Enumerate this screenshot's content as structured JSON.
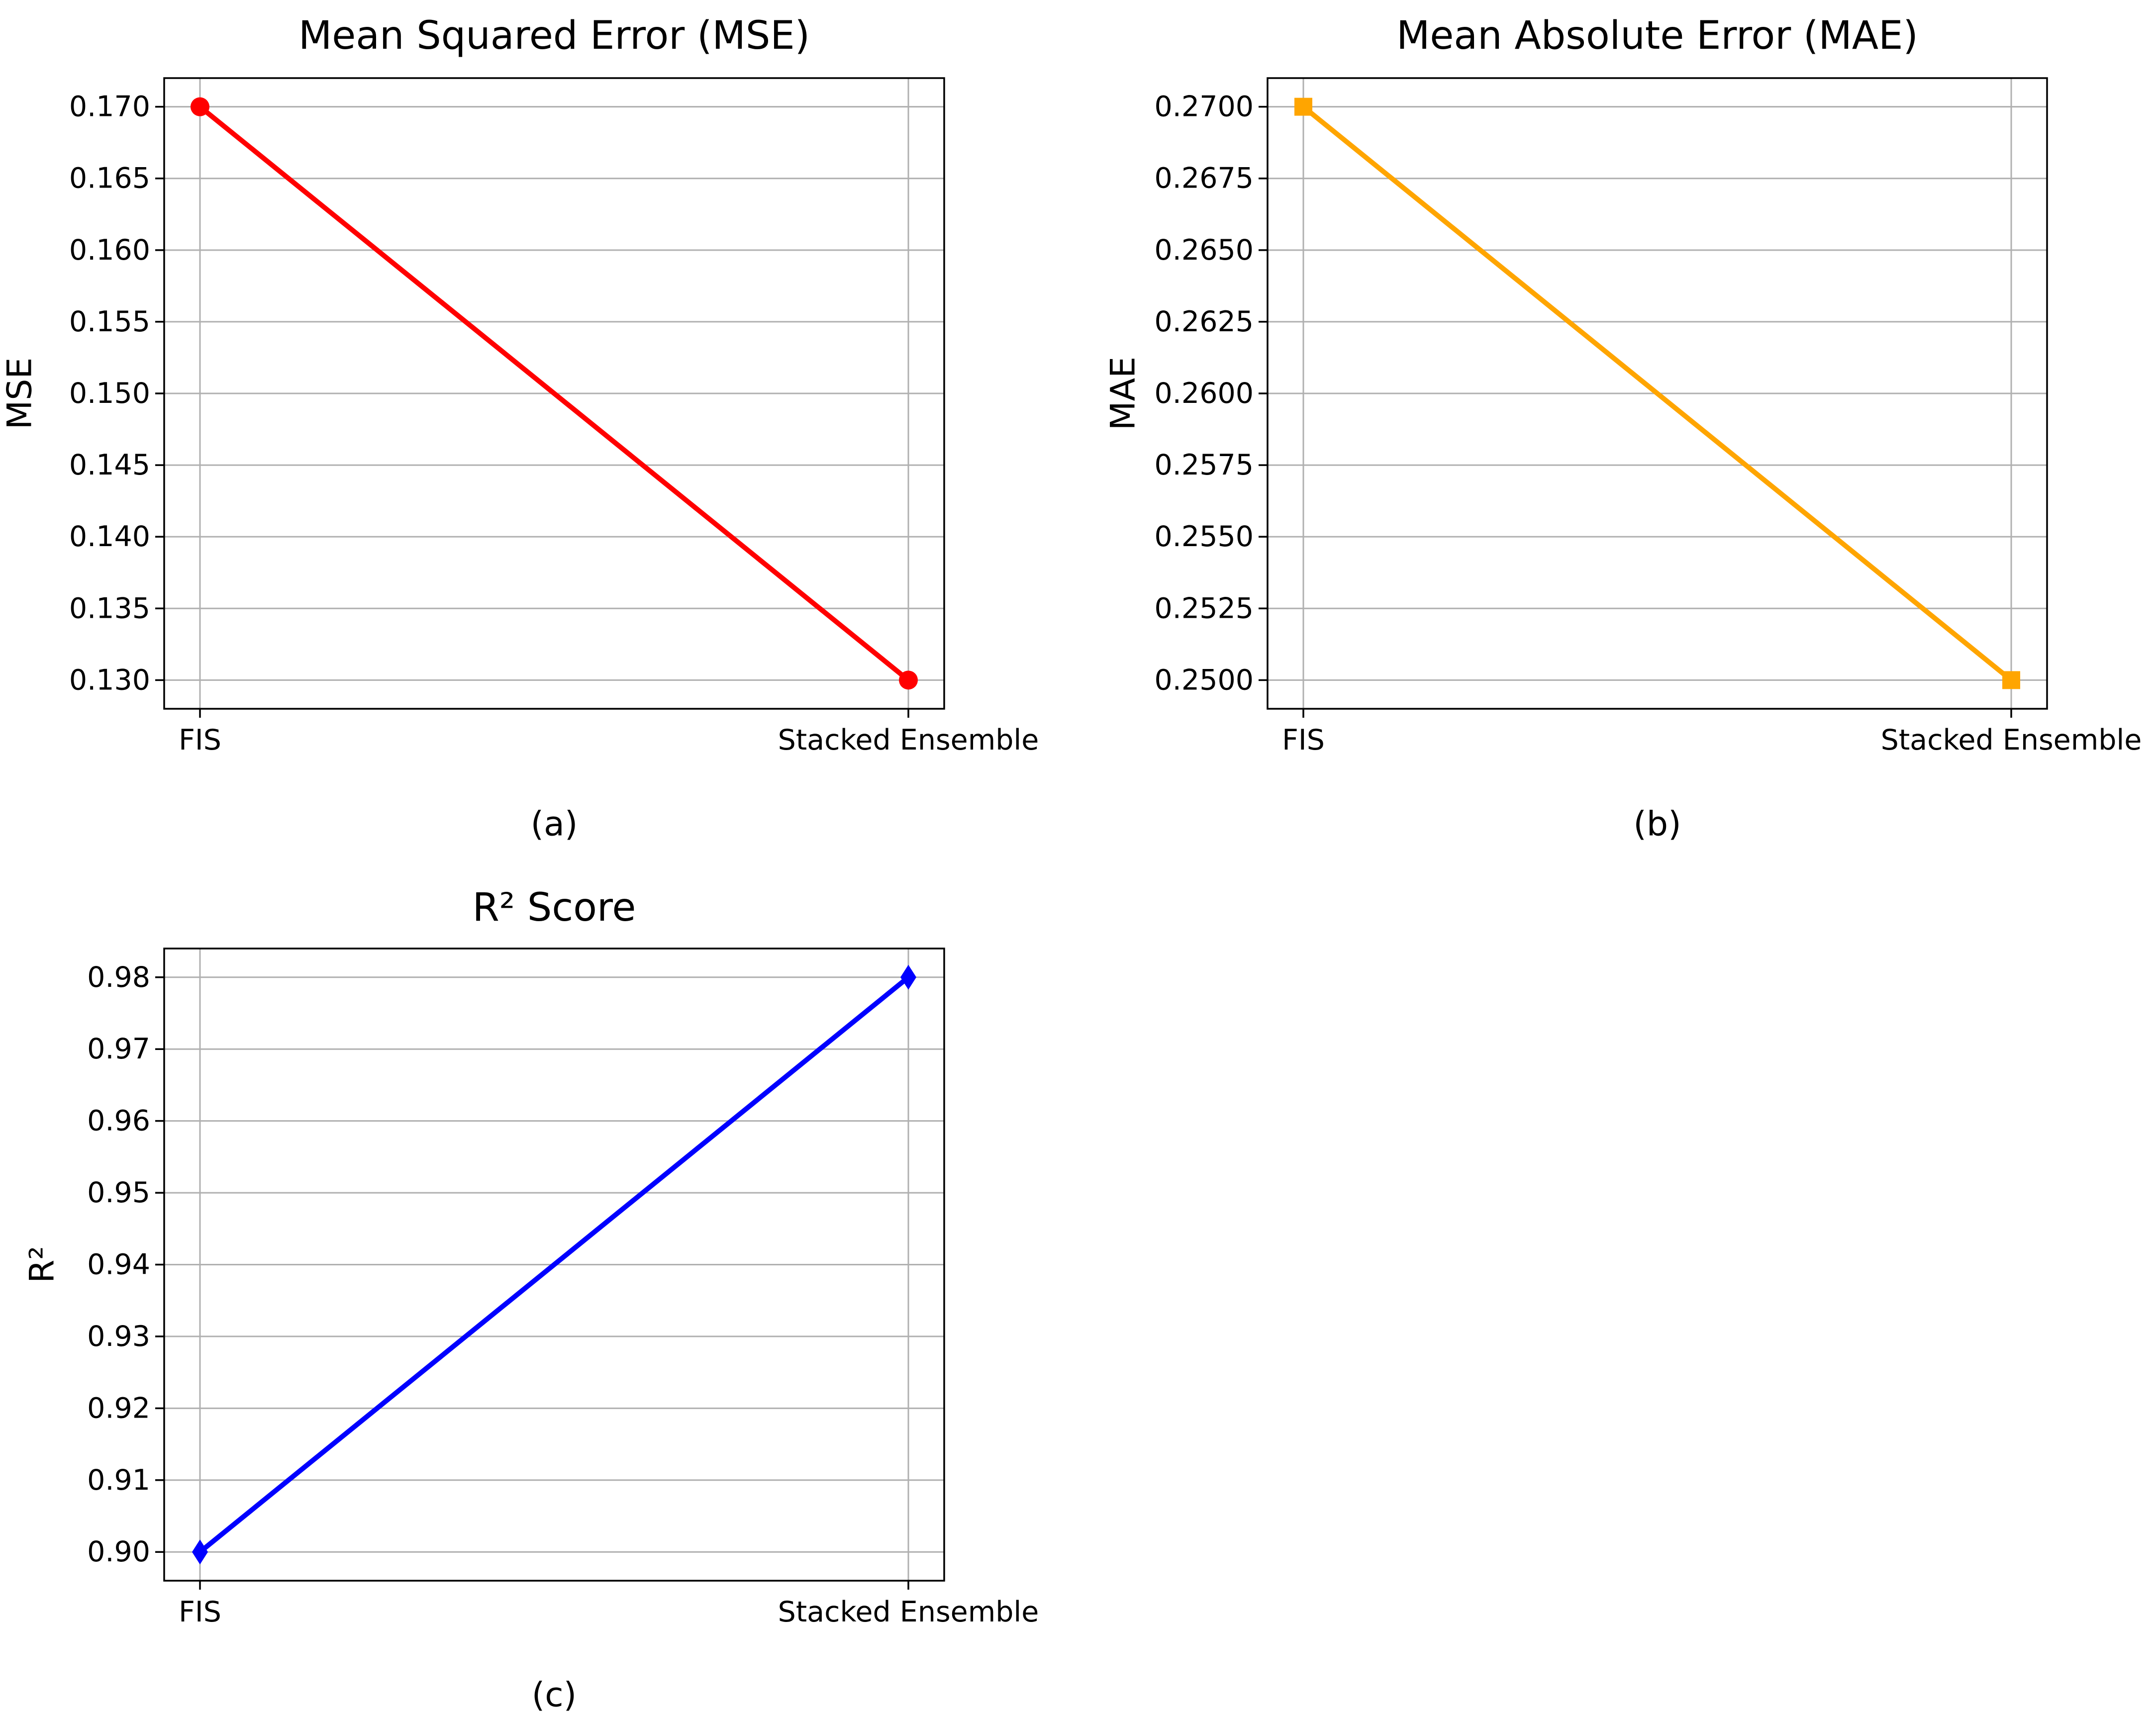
{
  "chart_data": [
    {
      "type": "line",
      "panel": "a",
      "title": "Mean Squared Error (MSE)",
      "xlabel": "",
      "ylabel": "MSE",
      "caption": "(a)",
      "categories": [
        "FIS",
        "Stacked Ensemble"
      ],
      "values": [
        0.17,
        0.13
      ],
      "ylim": [
        0.128,
        0.172
      ],
      "yticks": [
        "0.130",
        "0.135",
        "0.140",
        "0.145",
        "0.150",
        "0.155",
        "0.160",
        "0.165",
        "0.170"
      ],
      "grid": true,
      "color": "#ff0000",
      "marker": "circle"
    },
    {
      "type": "line",
      "panel": "b",
      "title": "Mean Absolute Error (MAE)",
      "xlabel": "",
      "ylabel": "MAE",
      "caption": "(b)",
      "categories": [
        "FIS",
        "Stacked Ensemble"
      ],
      "values": [
        0.27,
        0.25
      ],
      "ylim": [
        0.249,
        0.271
      ],
      "yticks": [
        "0.2500",
        "0.2525",
        "0.2550",
        "0.2575",
        "0.2600",
        "0.2625",
        "0.2650",
        "0.2675",
        "0.2700"
      ],
      "grid": true,
      "color": "#ffa500",
      "marker": "square"
    },
    {
      "type": "line",
      "panel": "c",
      "title": "R² Score",
      "xlabel": "",
      "ylabel": "R²",
      "caption": "(c)",
      "categories": [
        "FIS",
        "Stacked Ensemble"
      ],
      "values": [
        0.9,
        0.98
      ],
      "ylim": [
        0.896,
        0.984
      ],
      "yticks": [
        "0.90",
        "0.91",
        "0.92",
        "0.93",
        "0.94",
        "0.95",
        "0.96",
        "0.97",
        "0.98"
      ],
      "grid": true,
      "color": "#0000ff",
      "marker": "diamond"
    }
  ]
}
